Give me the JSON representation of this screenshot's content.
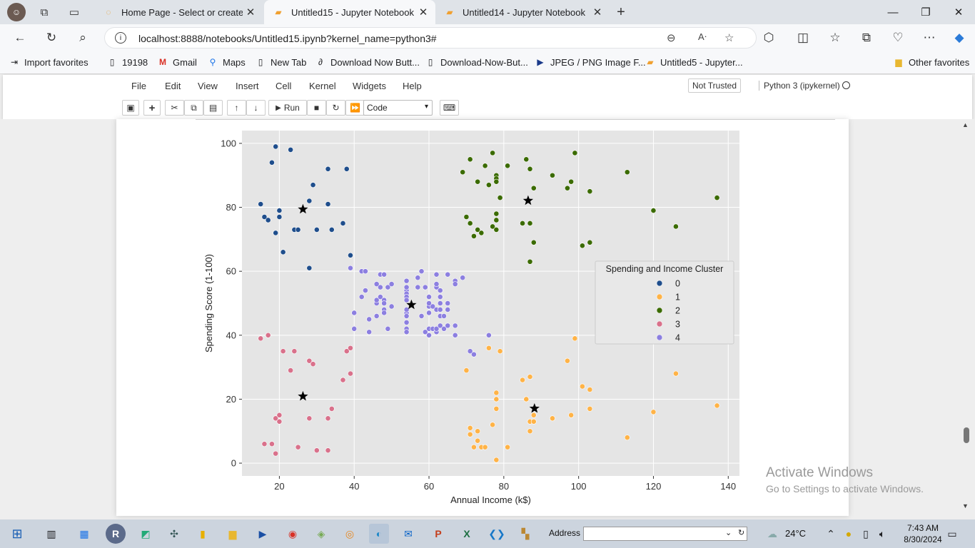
{
  "browser": {
    "tabs": [
      {
        "title": "Home Page - Select or create a n",
        "active": false
      },
      {
        "title": "Untitled15 - Jupyter Notebook",
        "active": true
      },
      {
        "title": "Untitled14 - Jupyter Notebook",
        "active": false
      }
    ],
    "url": "localhost:8888/notebooks/Untitled15.ipynb?kernel_name=python3#",
    "favorites": [
      {
        "label": "Import favorites",
        "icon": "import-icon"
      },
      {
        "label": "19198",
        "icon": "page-icon"
      },
      {
        "label": "Gmail",
        "icon": "gmail-icon"
      },
      {
        "label": "Maps",
        "icon": "maps-icon"
      },
      {
        "label": "New Tab",
        "icon": "page-icon"
      },
      {
        "label": "Download Now Butt...",
        "icon": "link-icon"
      },
      {
        "label": "Download-Now-But...",
        "icon": "page-icon"
      },
      {
        "label": "JPEG / PNG Image F...",
        "icon": "play-icon"
      },
      {
        "label": "Untitled5 - Jupyter...",
        "icon": "jupyter-icon"
      }
    ],
    "other_favorites": "Other favorites"
  },
  "jupyter": {
    "menu": [
      "File",
      "Edit",
      "View",
      "Insert",
      "Cell",
      "Kernel",
      "Widgets",
      "Help"
    ],
    "not_trusted": "Not Trusted",
    "kernel": "Python 3 (ipykernel)",
    "run_label": "Run",
    "cell_type": "Code"
  },
  "chart_data": {
    "type": "scatter",
    "xlabel": "Annual Income (k$)",
    "ylabel": "Spending Score (1-100)",
    "xlim": [
      10,
      143
    ],
    "ylim": [
      -4,
      104
    ],
    "xticks": [
      20,
      40,
      60,
      80,
      100,
      120,
      140
    ],
    "yticks": [
      0,
      20,
      40,
      60,
      80,
      100
    ],
    "grid": true,
    "legend_title": "Spending and Income Cluster",
    "legend_position": "center-right",
    "series": [
      {
        "name": "0",
        "color": "#1f4e8c",
        "points": [
          [
            15,
            81
          ],
          [
            16,
            77
          ],
          [
            17,
            76
          ],
          [
            18,
            94
          ],
          [
            19,
            72
          ],
          [
            19,
            99
          ],
          [
            20,
            77
          ],
          [
            20,
            79
          ],
          [
            21,
            66
          ],
          [
            23,
            98
          ],
          [
            24,
            73
          ],
          [
            25,
            73
          ],
          [
            28,
            82
          ],
          [
            28,
            61
          ],
          [
            29,
            87
          ],
          [
            30,
            73
          ],
          [
            33,
            92
          ],
          [
            33,
            81
          ],
          [
            34,
            73
          ],
          [
            37,
            75
          ],
          [
            38,
            92
          ],
          [
            39,
            65
          ]
        ]
      },
      {
        "name": "1",
        "color": "#ffb347",
        "points": [
          [
            70,
            29
          ],
          [
            71,
            11
          ],
          [
            71,
            9
          ],
          [
            72,
            5
          ],
          [
            73,
            7
          ],
          [
            73,
            10
          ],
          [
            74,
            5
          ],
          [
            75,
            5
          ],
          [
            76,
            36
          ],
          [
            77,
            12
          ],
          [
            78,
            22
          ],
          [
            78,
            20
          ],
          [
            78,
            17
          ],
          [
            78,
            1
          ],
          [
            79,
            35
          ],
          [
            81,
            5
          ],
          [
            85,
            26
          ],
          [
            86,
            20
          ],
          [
            87,
            27
          ],
          [
            87,
            13
          ],
          [
            87,
            10
          ],
          [
            88,
            13
          ],
          [
            88,
            15
          ],
          [
            93,
            14
          ],
          [
            97,
            32
          ],
          [
            98,
            15
          ],
          [
            99,
            39
          ],
          [
            101,
            24
          ],
          [
            103,
            17
          ],
          [
            103,
            23
          ],
          [
            113,
            8
          ],
          [
            120,
            16
          ],
          [
            126,
            28
          ],
          [
            137,
            18
          ]
        ]
      },
      {
        "name": "2",
        "color": "#3b6b00",
        "points": [
          [
            69,
            91
          ],
          [
            70,
            77
          ],
          [
            71,
            95
          ],
          [
            71,
            75
          ],
          [
            72,
            71
          ],
          [
            73,
            88
          ],
          [
            73,
            73
          ],
          [
            74,
            72
          ],
          [
            75,
            93
          ],
          [
            76,
            87
          ],
          [
            77,
            97
          ],
          [
            77,
            74
          ],
          [
            78,
            90
          ],
          [
            78,
            89
          ],
          [
            78,
            88
          ],
          [
            78,
            78
          ],
          [
            78,
            76
          ],
          [
            78,
            73
          ],
          [
            79,
            83
          ],
          [
            81,
            93
          ],
          [
            85,
            75
          ],
          [
            86,
            95
          ],
          [
            87,
            63
          ],
          [
            87,
            75
          ],
          [
            87,
            92
          ],
          [
            88,
            86
          ],
          [
            88,
            69
          ],
          [
            93,
            90
          ],
          [
            97,
            86
          ],
          [
            98,
            88
          ],
          [
            99,
            97
          ],
          [
            101,
            68
          ],
          [
            103,
            85
          ],
          [
            103,
            69
          ],
          [
            113,
            91
          ],
          [
            120,
            79
          ],
          [
            126,
            74
          ],
          [
            137,
            83
          ]
        ]
      },
      {
        "name": "3",
        "color": "#d9718b",
        "points": [
          [
            15,
            39
          ],
          [
            16,
            6
          ],
          [
            17,
            40
          ],
          [
            18,
            6
          ],
          [
            19,
            3
          ],
          [
            19,
            14
          ],
          [
            20,
            15
          ],
          [
            20,
            13
          ],
          [
            21,
            35
          ],
          [
            23,
            29
          ],
          [
            24,
            35
          ],
          [
            25,
            5
          ],
          [
            28,
            32
          ],
          [
            28,
            14
          ],
          [
            29,
            31
          ],
          [
            30,
            4
          ],
          [
            33,
            4
          ],
          [
            33,
            14
          ],
          [
            34,
            17
          ],
          [
            37,
            26
          ],
          [
            38,
            35
          ],
          [
            39,
            36
          ],
          [
            39,
            28
          ]
        ]
      },
      {
        "name": "4",
        "color": "#8c7fe0",
        "points": [
          [
            39,
            61
          ],
          [
            40,
            47
          ],
          [
            40,
            42
          ],
          [
            42,
            52
          ],
          [
            42,
            60
          ],
          [
            43,
            60
          ],
          [
            43,
            54
          ],
          [
            44,
            45
          ],
          [
            44,
            41
          ],
          [
            46,
            50
          ],
          [
            46,
            51
          ],
          [
            46,
            46
          ],
          [
            46,
            56
          ],
          [
            47,
            55
          ],
          [
            47,
            52
          ],
          [
            47,
            59
          ],
          [
            48,
            51
          ],
          [
            48,
            59
          ],
          [
            48,
            50
          ],
          [
            48,
            48
          ],
          [
            48,
            59
          ],
          [
            48,
            47
          ],
          [
            49,
            55
          ],
          [
            49,
            42
          ],
          [
            50,
            49
          ],
          [
            50,
            56
          ],
          [
            54,
            47
          ],
          [
            54,
            54
          ],
          [
            54,
            53
          ],
          [
            54,
            48
          ],
          [
            54,
            52
          ],
          [
            54,
            42
          ],
          [
            54,
            51
          ],
          [
            54,
            55
          ],
          [
            54,
            41
          ],
          [
            54,
            44
          ],
          [
            54,
            57
          ],
          [
            54,
            46
          ],
          [
            57,
            58
          ],
          [
            57,
            55
          ],
          [
            58,
            60
          ],
          [
            58,
            46
          ],
          [
            59,
            55
          ],
          [
            59,
            41
          ],
          [
            60,
            49
          ],
          [
            60,
            40
          ],
          [
            60,
            42
          ],
          [
            60,
            52
          ],
          [
            60,
            47
          ],
          [
            60,
            50
          ],
          [
            61,
            42
          ],
          [
            61,
            49
          ],
          [
            62,
            41
          ],
          [
            62,
            48
          ],
          [
            62,
            59
          ],
          [
            62,
            55
          ],
          [
            62,
            56
          ],
          [
            62,
            42
          ],
          [
            63,
            50
          ],
          [
            63,
            46
          ],
          [
            63,
            43
          ],
          [
            63,
            48
          ],
          [
            63,
            52
          ],
          [
            63,
            54
          ],
          [
            64,
            42
          ],
          [
            64,
            46
          ],
          [
            65,
            48
          ],
          [
            65,
            50
          ],
          [
            65,
            43
          ],
          [
            65,
            59
          ],
          [
            67,
            43
          ],
          [
            67,
            57
          ],
          [
            67,
            56
          ],
          [
            67,
            40
          ],
          [
            69,
            58
          ],
          [
            71,
            35
          ],
          [
            72,
            34
          ],
          [
            76,
            40
          ]
        ]
      }
    ],
    "centroids": [
      [
        26.3,
        79.4
      ],
      [
        88.2,
        17.1
      ],
      [
        86.5,
        82.1
      ],
      [
        26.3,
        20.9
      ],
      [
        55.3,
        49.5
      ]
    ]
  },
  "watermark": {
    "line1": "Activate Windows",
    "line2": "Go to Settings to activate Windows."
  },
  "taskbar": {
    "address_label": "Address",
    "temperature": "24°C",
    "time": "7:43 AM",
    "date": "8/30/2024"
  }
}
